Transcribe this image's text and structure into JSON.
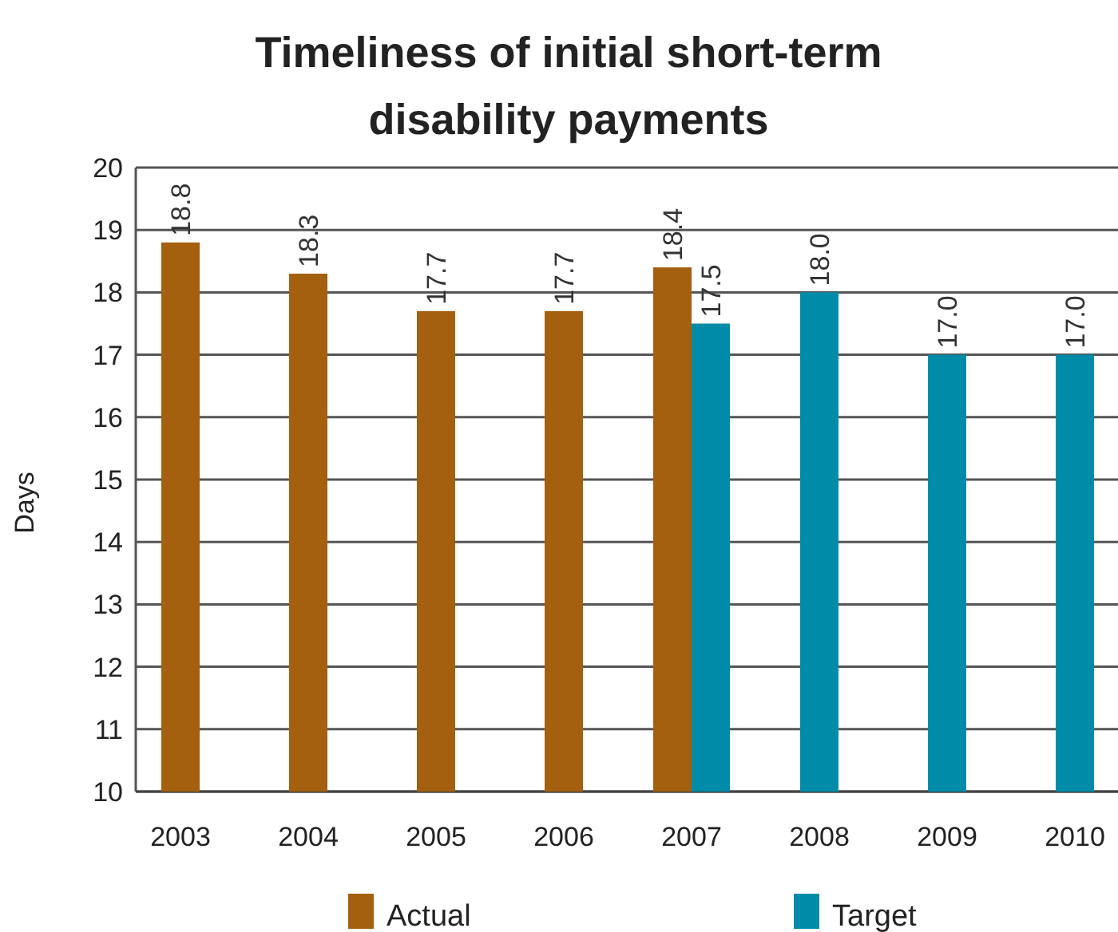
{
  "chart_data": {
    "type": "bar",
    "title": "Timeliness of initial short-term disability payments",
    "ylabel": "Days",
    "categories": [
      "2003",
      "2004",
      "2005",
      "2006",
      "2007",
      "2008",
      "2009",
      "2010"
    ],
    "series": [
      {
        "name": "Actual",
        "color": "#a45f0f",
        "values": [
          18.8,
          18.3,
          17.7,
          17.7,
          18.4,
          null,
          null,
          null
        ],
        "value_labels": [
          "18.8",
          "18.3",
          "17.7",
          "17.7",
          "18.4",
          null,
          null,
          null
        ]
      },
      {
        "name": "Target",
        "color": "#008ca9",
        "values": [
          null,
          null,
          null,
          null,
          17.5,
          18.0,
          17.0,
          17.0
        ],
        "value_labels": [
          null,
          null,
          null,
          null,
          "17.5",
          "18.0",
          "17.0",
          "17.0"
        ]
      }
    ],
    "ylim": [
      10,
      20
    ],
    "yticks": [
      10,
      11,
      12,
      13,
      14,
      15,
      16,
      17,
      18,
      19,
      20
    ],
    "grid": "y",
    "legend": "bottom"
  }
}
